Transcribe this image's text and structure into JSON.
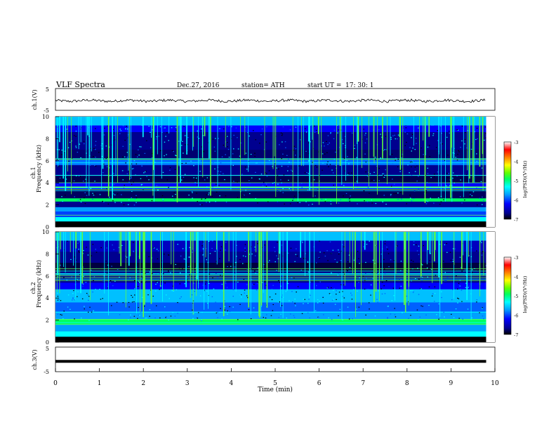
{
  "header": {
    "title": "VLF  Spectra",
    "date": "Dec.27, 2016",
    "station": "station= ATH",
    "start_label": "start  UT  =",
    "start_time": "17: 30: 1"
  },
  "colors": {
    "trace": "#000000",
    "colormap": [
      "#000000",
      "#00008f",
      "#0000ff",
      "#00a0ff",
      "#00ffff",
      "#00ff60",
      "#60ff00",
      "#ffff00",
      "#ff8000",
      "#ff0000",
      "#ffffff"
    ]
  },
  "chart_data": [
    {
      "type": "line",
      "name": "ch1-waveform",
      "ylabel": "ch.1(V)",
      "ylim": [
        -5,
        5
      ],
      "y_ticks": [
        "5",
        "-5"
      ],
      "description_values": "noisy trace near 0 V",
      "mean": 0
    },
    {
      "type": "heatmap",
      "name": "ch1-spectrogram",
      "ylabel": "ch.1\nFrequency  (kHz)",
      "ylim": [
        0,
        10
      ],
      "y_ticks": [
        "10",
        "8",
        "6",
        "4",
        "2",
        "0"
      ],
      "xlim": [
        0,
        10
      ],
      "colorbar": {
        "label": "log(PSD)(V²/Hz)",
        "range": [
          -7,
          -3
        ],
        "ticks": [
          "-3",
          "-4",
          "-5",
          "-6",
          "-7"
        ]
      }
    },
    {
      "type": "heatmap",
      "name": "ch2-spectrogram",
      "ylabel": "ch.2\nFrequency  (kHz)",
      "ylim": [
        0,
        10
      ],
      "y_ticks": [
        "10",
        "8",
        "6",
        "4",
        "2",
        "0"
      ],
      "xlim": [
        0,
        10
      ],
      "colorbar": {
        "label": "log(PSD)(V²/Hz)",
        "range": [
          -7,
          -3
        ],
        "ticks": [
          "-3",
          "-4",
          "-5",
          "-6",
          "-7"
        ]
      }
    },
    {
      "type": "line",
      "name": "ch3-waveform",
      "ylabel": "ch.3(V)",
      "ylim": [
        -5,
        5
      ],
      "y_ticks": [
        "5",
        "-5"
      ],
      "level": -0.8
    }
  ],
  "x_axis": {
    "label": "Time  (min)",
    "ticks": [
      "0",
      "1",
      "2",
      "3",
      "4",
      "5",
      "6",
      "7",
      "8",
      "9",
      "10"
    ],
    "range": [
      0,
      10
    ],
    "data_end": 9.8
  }
}
